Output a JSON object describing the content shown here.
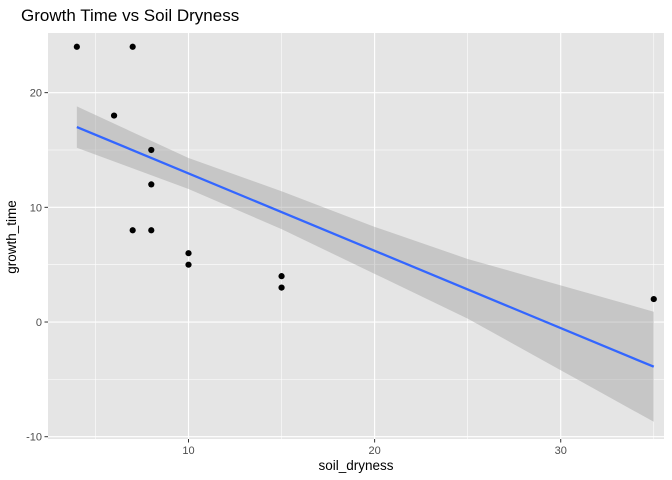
{
  "chart_data": {
    "type": "scatter",
    "title": "Growth Time vs Soil Dryness",
    "xlabel": "soil_dryness",
    "ylabel": "growth_time",
    "xlim": [
      2.45,
      35.55
    ],
    "ylim": [
      -10.2,
      25.2
    ],
    "x_ticks": [
      10,
      20,
      30
    ],
    "y_ticks": [
      -10,
      0,
      10,
      20
    ],
    "x_minor_ticks": [
      5,
      15,
      25,
      35
    ],
    "y_minor_ticks": [
      -5,
      5,
      15
    ],
    "grid": true,
    "points": [
      {
        "x": 4,
        "y": 24
      },
      {
        "x": 7,
        "y": 24
      },
      {
        "x": 6,
        "y": 18
      },
      {
        "x": 8,
        "y": 15
      },
      {
        "x": 8,
        "y": 12
      },
      {
        "x": 7,
        "y": 8
      },
      {
        "x": 8,
        "y": 8
      },
      {
        "x": 10,
        "y": 6
      },
      {
        "x": 10,
        "y": 5
      },
      {
        "x": 15,
        "y": 4
      },
      {
        "x": 15,
        "y": 3
      },
      {
        "x": 35,
        "y": 2
      }
    ],
    "smooth": {
      "method": "linear",
      "x": [
        4,
        35
      ],
      "y": [
        17.0,
        -3.9
      ],
      "band": [
        {
          "x": 4,
          "lower": 15.2,
          "upper": 18.8
        },
        {
          "x": 10,
          "lower": 11.6,
          "upper": 14.3
        },
        {
          "x": 15,
          "lower": 8.1,
          "upper": 11.4
        },
        {
          "x": 20,
          "lower": 4.2,
          "upper": 8.3
        },
        {
          "x": 25,
          "lower": 0.3,
          "upper": 5.5
        },
        {
          "x": 30,
          "lower": -4.2,
          "upper": 3.2
        },
        {
          "x": 35,
          "lower": -8.7,
          "upper": 0.9
        }
      ]
    },
    "colors": {
      "panel": "#e5e5e5",
      "grid": "#ffffff",
      "point": "#000000",
      "line": "#3366ff",
      "band": "#999999"
    }
  }
}
